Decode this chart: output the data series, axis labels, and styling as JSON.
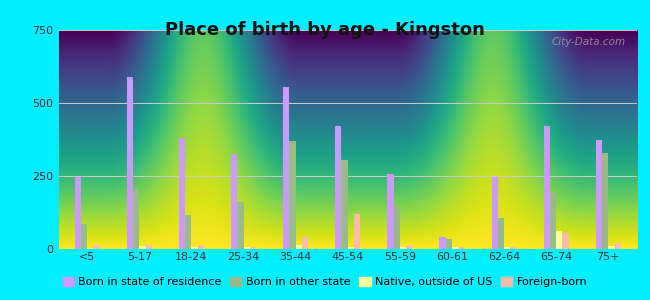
{
  "title": "Place of birth by age - Kingston",
  "categories": [
    "<5",
    "5-17",
    "18-24",
    "25-34",
    "35-44",
    "45-54",
    "55-59",
    "60-61",
    "62-64",
    "65-74",
    "75+"
  ],
  "series": {
    "Born in state of residence": [
      245,
      590,
      380,
      325,
      555,
      420,
      258,
      40,
      245,
      420,
      375
    ],
    "Born in other state": [
      85,
      205,
      115,
      160,
      370,
      305,
      145,
      35,
      105,
      195,
      330
    ],
    "Native, outside of US": [
      5,
      10,
      8,
      8,
      12,
      8,
      8,
      8,
      8,
      60,
      10
    ],
    "Foreign-born": [
      12,
      12,
      12,
      8,
      40,
      120,
      12,
      8,
      8,
      55,
      22
    ]
  },
  "colors": {
    "Born in state of residence": "#cc99ff",
    "Born in other state": "#99bb88",
    "Native, outside of US": "#ffff99",
    "Foreign-born": "#ffbbaa"
  },
  "ylim": [
    0,
    750
  ],
  "yticks": [
    0,
    250,
    500,
    750
  ],
  "background_color": "#00eeff",
  "watermark": "City-Data.com",
  "bar_width": 0.12,
  "title_fontsize": 13,
  "tick_fontsize": 8,
  "legend_fontsize": 8
}
